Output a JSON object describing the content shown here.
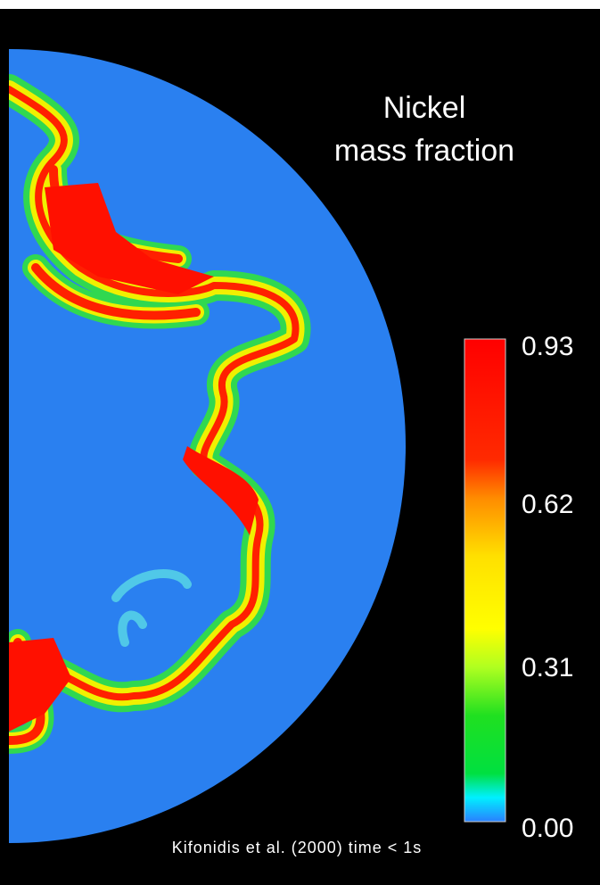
{
  "title": {
    "line1": "Nickel",
    "line2": "mass fraction"
  },
  "colorbar": {
    "ticks": [
      "0.93",
      "0.62",
      "0.31",
      "0.00"
    ]
  },
  "caption": "Kifonidis et al. (2000) time < 1s"
}
